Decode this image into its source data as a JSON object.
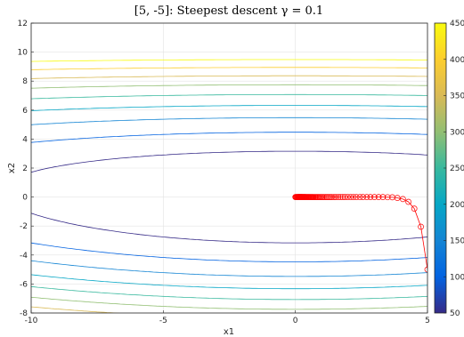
{
  "chart_data": {
    "type": "contour",
    "title": "[5, -5]: Steepest descent γ = 0.1",
    "xlabel": "x1",
    "ylabel": "x2",
    "xlim": [
      -10,
      5
    ],
    "ylim": [
      -8,
      12
    ],
    "xticks": [
      -10,
      -5,
      0,
      5
    ],
    "xtick_labels": [
      "-10",
      "-5",
      "0",
      "5"
    ],
    "yticks": [
      -8,
      -6,
      -4,
      -2,
      0,
      2,
      4,
      6,
      8,
      10,
      12
    ],
    "ytick_labels": [
      "-8",
      "-6",
      "-4",
      "-2",
      "0",
      "2",
      "4",
      "6",
      "8",
      "10",
      "12"
    ],
    "grid": true,
    "colorbar": {
      "range": [
        50,
        450
      ],
      "ticks": [
        50,
        100,
        150,
        200,
        250,
        300,
        350,
        400,
        450
      ],
      "tick_labels": [
        "50",
        "100",
        "150",
        "200",
        "250",
        "300",
        "350",
        "400",
        "450"
      ],
      "colormap": "parula"
    },
    "contour_levels": [
      50,
      100,
      150,
      200,
      250,
      300,
      350,
      400,
      450
    ],
    "path": {
      "color": "#ff0000",
      "marker": "circle",
      "points": [
        [
          5,
          -5
        ],
        [
          4.75,
          -2.05
        ],
        [
          4.5,
          -0.8
        ],
        [
          4.28,
          -0.33
        ],
        [
          4.07,
          -0.14
        ],
        [
          3.86,
          -0.06
        ],
        [
          3.67,
          -0.02
        ],
        [
          3.49,
          -0.01
        ],
        [
          3.31,
          0
        ],
        [
          3.15,
          0
        ],
        [
          2.99,
          0
        ],
        [
          2.84,
          0
        ],
        [
          2.7,
          0
        ],
        [
          2.56,
          0
        ],
        [
          2.44,
          0
        ],
        [
          2.31,
          0
        ],
        [
          2.2,
          0
        ],
        [
          2.09,
          0
        ],
        [
          1.98,
          0
        ],
        [
          1.88,
          0
        ],
        [
          1.79,
          0
        ],
        [
          1.7,
          0
        ],
        [
          1.62,
          0
        ],
        [
          1.53,
          0
        ],
        [
          1.46,
          0
        ],
        [
          1.38,
          0
        ],
        [
          1.32,
          0
        ],
        [
          1.25,
          0
        ],
        [
          1.19,
          0
        ],
        [
          1.13,
          0
        ],
        [
          1.07,
          0
        ],
        [
          1.02,
          0
        ],
        [
          0.97,
          0
        ],
        [
          0.92,
          0
        ],
        [
          0.87,
          0
        ],
        [
          0.83,
          0
        ],
        [
          0.79,
          0
        ],
        [
          0.75,
          0
        ],
        [
          0.71,
          0
        ],
        [
          0.67,
          0
        ],
        [
          0.64,
          0
        ],
        [
          0.61,
          0
        ],
        [
          0.58,
          0
        ],
        [
          0.55,
          0
        ],
        [
          0.52,
          0
        ],
        [
          0.5,
          0
        ],
        [
          0.47,
          0
        ],
        [
          0.45,
          0
        ],
        [
          0.42,
          0
        ],
        [
          0.4,
          0
        ],
        [
          0.38,
          0
        ],
        [
          0.36,
          0
        ],
        [
          0.35,
          0
        ],
        [
          0.33,
          0
        ],
        [
          0.31,
          0
        ],
        [
          0.3,
          0
        ],
        [
          0.28,
          0
        ],
        [
          0.27,
          0
        ],
        [
          0.25,
          0
        ],
        [
          0.24,
          0
        ],
        [
          0.23,
          0
        ],
        [
          0.22,
          0
        ],
        [
          0.21,
          0
        ],
        [
          0.2,
          0
        ],
        [
          0.19,
          0
        ],
        [
          0.18,
          0
        ],
        [
          0.17,
          0
        ],
        [
          0.16,
          0
        ],
        [
          0.15,
          0
        ],
        [
          0.14,
          0
        ],
        [
          0.13,
          0
        ],
        [
          0.12,
          0
        ],
        [
          0.11,
          0
        ],
        [
          0.1,
          0
        ],
        [
          0.08,
          0
        ],
        [
          0.06,
          0
        ],
        [
          0.04,
          0
        ],
        [
          0.02,
          0
        ],
        [
          0,
          0
        ]
      ]
    }
  }
}
